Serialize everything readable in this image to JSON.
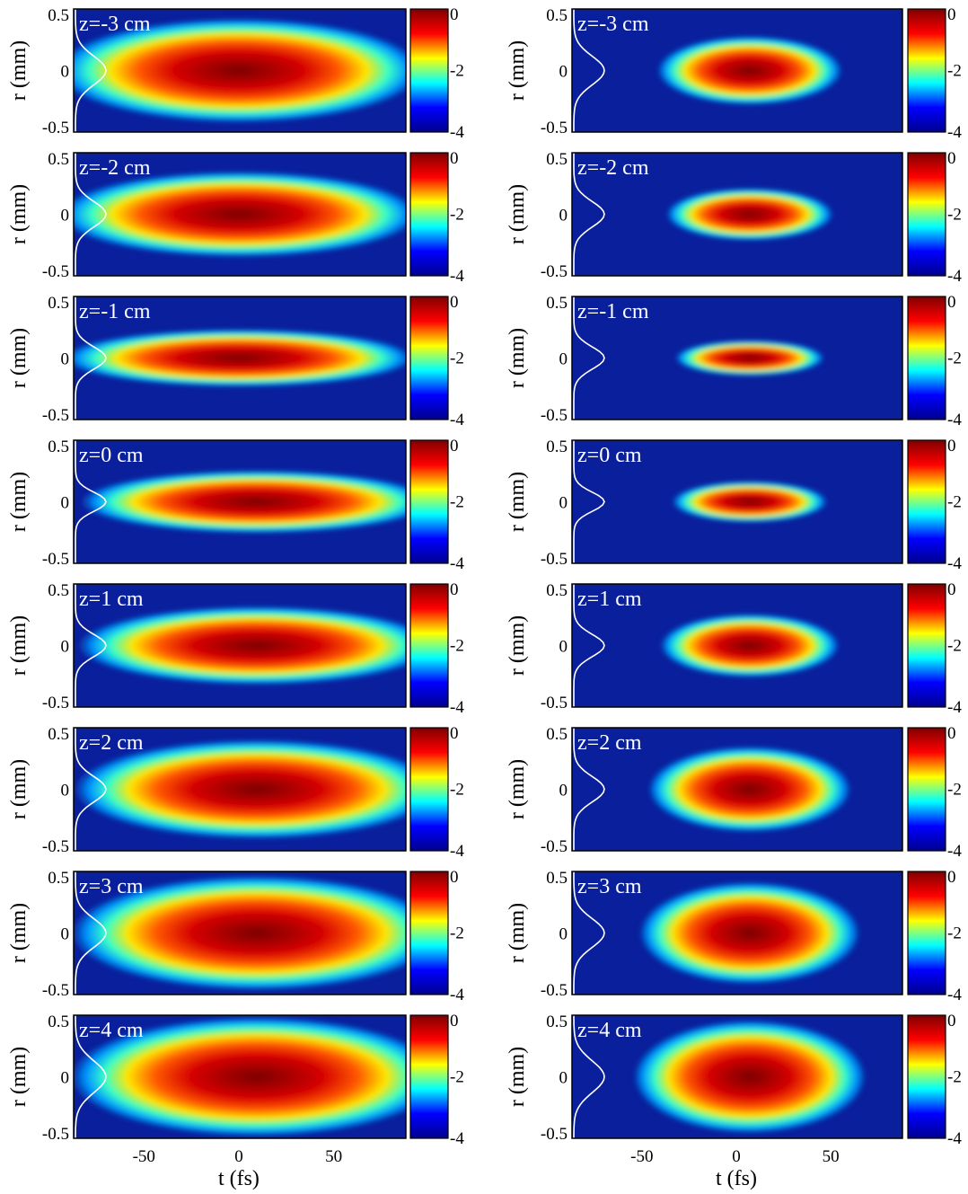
{
  "chart_data": [
    {
      "type": "heatmap",
      "column": "left",
      "ylabel": "r (mm)",
      "xlabel": "t (fs)",
      "xticks": [
        "-50",
        "0",
        "50"
      ],
      "yticks": [
        "0.5",
        "0",
        "-0.5"
      ],
      "colorbar_ticks": [
        "0",
        "-2",
        "-4"
      ],
      "colorbar_range": [
        -4,
        0
      ],
      "colormap": "jet",
      "xlim": [
        -87,
        88
      ],
      "ylim": [
        -0.55,
        0.55
      ],
      "panels": [
        {
          "label": "z=-3 cm",
          "z_cm": -3
        },
        {
          "label": "z=-2 cm",
          "z_cm": -2
        },
        {
          "label": "z=-1 cm",
          "z_cm": -1
        },
        {
          "label": "z=0 cm",
          "z_cm": 0
        },
        {
          "label": "z=1 cm",
          "z_cm": 1
        },
        {
          "label": "z=2 cm",
          "z_cm": 2
        },
        {
          "label": "z=3 cm",
          "z_cm": 3
        },
        {
          "label": "z=4 cm",
          "z_cm": 4
        }
      ]
    },
    {
      "type": "heatmap",
      "column": "right",
      "ylabel": "r (mm)",
      "xlabel": "t (fs)",
      "xticks": [
        "-50",
        "0",
        "50"
      ],
      "yticks": [
        "0.5",
        "0",
        "-0.5"
      ],
      "colorbar_ticks": [
        "0",
        "-2",
        "-4"
      ],
      "colorbar_range": [
        -4,
        0
      ],
      "colormap": "jet",
      "xlim": [
        -87,
        88
      ],
      "ylim": [
        -0.55,
        0.55
      ],
      "panels": [
        {
          "label": "z=-3 cm",
          "z_cm": -3
        },
        {
          "label": "z=-2 cm",
          "z_cm": -2
        },
        {
          "label": "z=-1 cm",
          "z_cm": -1
        },
        {
          "label": "z=0 cm",
          "z_cm": 0
        },
        {
          "label": "z=1 cm",
          "z_cm": 1
        },
        {
          "label": "z=2 cm",
          "z_cm": 2
        },
        {
          "label": "z=3 cm",
          "z_cm": 3
        },
        {
          "label": "z=4 cm",
          "z_cm": 4
        }
      ]
    }
  ],
  "colors": {
    "background_low": "#0a1f9c",
    "jet": [
      "#00008f",
      "#0000ff",
      "#00ffff",
      "#ffff00",
      "#ff0000",
      "#800000"
    ],
    "profile_line": "#ffffff",
    "label_text": "#ffffff"
  }
}
